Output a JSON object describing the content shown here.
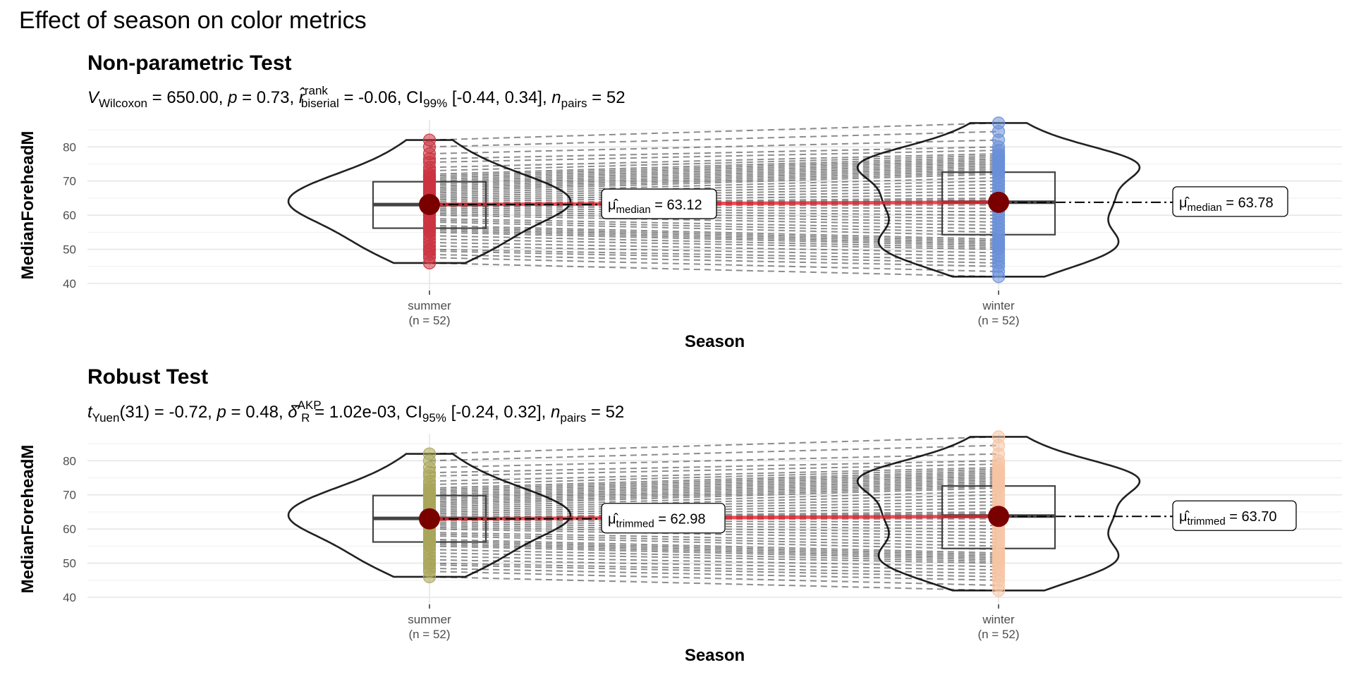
{
  "figure_title": "Effect of season on color metrics",
  "chart_data": [
    {
      "type": "violin-box-paired",
      "panel_title": "Non-parametric Test",
      "subtitle": {
        "stat_symbol": "V",
        "stat_sub": "Wilcoxon",
        "stat_value": " = 650.00, ",
        "p_symbol": "p",
        "p_value": " = 0.73, ",
        "effect_symbol": "r̂",
        "effect_sup": "rank",
        "effect_sub": "biserial",
        "effect_value": " = -0.06, ",
        "ci_label": "CI",
        "ci_sub": "99%",
        "ci_value": " [-0.44, 0.34], ",
        "n_symbol": "n",
        "n_sub": "pairs",
        "n_value": " = 52"
      },
      "xlabel": "Season",
      "ylabel": "MedianForeheadM",
      "ylim": [
        40,
        87.5
      ],
      "yticks": [
        40,
        50,
        60,
        70,
        80
      ],
      "categories": [
        {
          "name": "summer",
          "n_label": "(n = 52)",
          "point_color": "#cc3340",
          "box": {
            "q1": 56.2,
            "median": 63.1,
            "q3": 69.8
          },
          "centrality": 63.12,
          "label_symbol": "μ̂",
          "label_sub": "median",
          "label_value": " = 63.12",
          "values": [
            46.0,
            47.6,
            48.5,
            49.5,
            50.0,
            51.0,
            52.0,
            53.0,
            54.0,
            55.0,
            55.5,
            56.0,
            56.5,
            57.0,
            58.0,
            58.5,
            59.0,
            60.0,
            60.5,
            61.0,
            61.5,
            62.0,
            62.5,
            62.8,
            63.0,
            63.1,
            63.2,
            63.5,
            64.0,
            64.5,
            65.0,
            65.5,
            66.0,
            66.5,
            67.0,
            67.5,
            68.0,
            68.5,
            69.0,
            69.5,
            70.0,
            70.5,
            71.0,
            71.5,
            72.0,
            73.0,
            74.0,
            75.5,
            76.5,
            78.0,
            80.0,
            82.0
          ]
        },
        {
          "name": "winter",
          "n_label": "(n = 52)",
          "point_color": "#6a8fd8",
          "box": {
            "q1": 54.3,
            "median": 63.8,
            "q3": 72.6
          },
          "centrality": 63.78,
          "label_symbol": "μ̂",
          "label_sub": "median",
          "label_value": " = 63.78",
          "values": [
            42.0,
            43.5,
            45.0,
            46.0,
            47.0,
            48.0,
            49.0,
            50.0,
            50.5,
            51.0,
            51.5,
            52.0,
            52.5,
            53.0,
            54.0,
            55.0,
            56.0,
            57.0,
            58.0,
            59.0,
            60.0,
            61.0,
            62.0,
            63.0,
            63.5,
            64.0,
            64.5,
            65.0,
            66.0,
            67.0,
            68.0,
            69.0,
            70.0,
            71.0,
            72.0,
            72.5,
            73.0,
            73.5,
            74.0,
            74.5,
            75.0,
            75.5,
            76.0,
            76.5,
            77.0,
            77.5,
            78.0,
            79.0,
            80.0,
            82.0,
            84.5,
            87.0
          ]
        }
      ]
    },
    {
      "type": "violin-box-paired",
      "panel_title": "Robust Test",
      "subtitle": {
        "stat_symbol": "t",
        "stat_sub": "Yuen",
        "stat_value": "(31) = -0.72, ",
        "p_symbol": "p",
        "p_value": " = 0.48, ",
        "effect_symbol": "δ̂",
        "effect_sup": "AKP",
        "effect_sub": "R",
        "effect_value": " = 1.02e-03, ",
        "ci_label": "CI",
        "ci_sub": "95%",
        "ci_value": " [-0.24, 0.32], ",
        "n_symbol": "n",
        "n_sub": "pairs",
        "n_value": " = 52"
      },
      "xlabel": "Season",
      "ylabel": "MedianForeheadM",
      "ylim": [
        40,
        87.5
      ],
      "yticks": [
        40,
        50,
        60,
        70,
        80
      ],
      "categories": [
        {
          "name": "summer",
          "n_label": "(n = 52)",
          "point_color": "#a9a65a",
          "box": {
            "q1": 56.2,
            "median": 63.1,
            "q3": 69.8
          },
          "centrality": 62.98,
          "label_symbol": "μ̂",
          "label_sub": "trimmed",
          "label_value": " = 62.98",
          "values": [
            46.0,
            47.6,
            48.5,
            49.5,
            50.0,
            51.0,
            52.0,
            53.0,
            54.0,
            55.0,
            55.5,
            56.0,
            56.5,
            57.0,
            58.0,
            58.5,
            59.0,
            60.0,
            60.5,
            61.0,
            61.5,
            62.0,
            62.5,
            62.8,
            63.0,
            63.1,
            63.2,
            63.5,
            64.0,
            64.5,
            65.0,
            65.5,
            66.0,
            66.5,
            67.0,
            67.5,
            68.0,
            68.5,
            69.0,
            69.5,
            70.0,
            70.5,
            71.0,
            71.5,
            72.0,
            73.0,
            74.0,
            75.5,
            76.5,
            78.0,
            80.0,
            82.0
          ]
        },
        {
          "name": "winter",
          "n_label": "(n = 52)",
          "point_color": "#f6c4a4",
          "box": {
            "q1": 54.3,
            "median": 63.8,
            "q3": 72.6
          },
          "centrality": 63.7,
          "label_symbol": "μ̂",
          "label_sub": "trimmed",
          "label_value": " = 63.70",
          "values": [
            42.0,
            43.5,
            45.0,
            46.0,
            47.0,
            48.0,
            49.0,
            50.0,
            50.5,
            51.0,
            51.5,
            52.0,
            52.5,
            53.0,
            54.0,
            55.0,
            56.0,
            57.0,
            58.0,
            59.0,
            60.0,
            61.0,
            62.0,
            63.0,
            63.5,
            64.0,
            64.5,
            65.0,
            66.0,
            67.0,
            68.0,
            69.0,
            70.0,
            71.0,
            72.0,
            72.5,
            73.0,
            73.5,
            74.0,
            74.5,
            75.0,
            75.5,
            76.0,
            76.5,
            77.0,
            77.5,
            78.0,
            79.0,
            80.0,
            82.0,
            84.5,
            87.0
          ]
        }
      ]
    }
  ]
}
